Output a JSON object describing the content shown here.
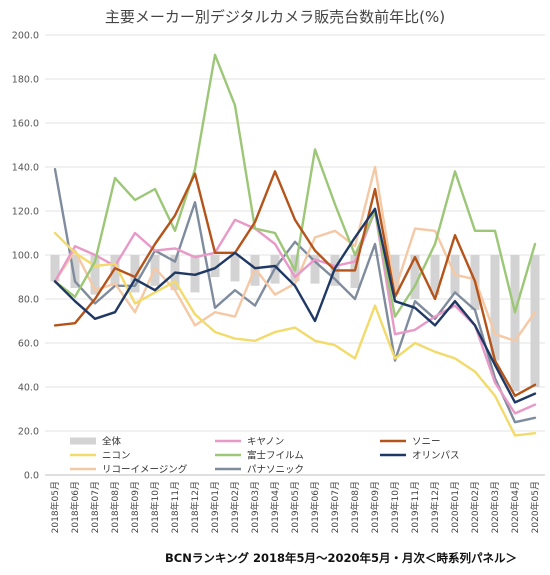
{
  "chart_data": {
    "type": "bar+line",
    "title": "主要メーカー別デジタルカメラ販売台数前年比(%)",
    "ylim": [
      0,
      200
    ],
    "yticks": [
      "0.0",
      "20.0",
      "40.0",
      "60.0",
      "80.0",
      "100.0",
      "120.0",
      "140.0",
      "160.0",
      "180.0",
      "200.0"
    ],
    "grid": true,
    "legend_position": "bottom-inside",
    "categories": [
      "2018年05月",
      "2018年06月",
      "2018年07月",
      "2018年08月",
      "2018年09月",
      "2018年10月",
      "2018年11月",
      "2018年12月",
      "2019年01月",
      "2019年02月",
      "2019年03月",
      "2019年04月",
      "2019年05月",
      "2019年06月",
      "2019年07月",
      "2019年08月",
      "2019年09月",
      "2019年10月",
      "2019年11月",
      "2019年12月",
      "2020年01月",
      "2020年02月",
      "2020年03月",
      "2020年04月",
      "2020年05月"
    ],
    "bar_series": {
      "name": "全体",
      "color": "#d3d3d3",
      "values": [
        88,
        85,
        82,
        86,
        83,
        86,
        84,
        83,
        90,
        88,
        86,
        87,
        88,
        87,
        86,
        85,
        100,
        82,
        80,
        82,
        82,
        75,
        52,
        38,
        40
      ]
    },
    "series": [
      {
        "name": "キヤノン",
        "color": "#e899c7",
        "values": [
          88,
          104,
          100,
          95,
          110,
          102,
          103,
          99,
          101,
          116,
          112,
          105,
          90,
          98,
          95,
          97,
          120,
          64,
          66,
          72,
          77,
          68,
          42,
          28,
          32
        ]
      },
      {
        "name": "ソニー",
        "color": "#b5541a",
        "values": [
          68,
          69,
          80,
          94,
          90,
          105,
          118,
          137,
          101,
          101,
          115,
          138,
          116,
          102,
          93,
          93,
          130,
          81,
          99,
          80,
          109,
          88,
          52,
          36,
          41
        ]
      },
      {
        "name": "ニコン",
        "color": "#f2db6a",
        "values": [
          110,
          101,
          95,
          96,
          78,
          83,
          88,
          73,
          65,
          62,
          61,
          65,
          67,
          61,
          59,
          53,
          77,
          53,
          60,
          56,
          53,
          47,
          36,
          18,
          19
        ]
      },
      {
        "name": "富士フイルム",
        "color": "#9cc777",
        "values": [
          88,
          81,
          97,
          135,
          125,
          130,
          111,
          139,
          191,
          168,
          112,
          110,
          93,
          148,
          123,
          100,
          120,
          72,
          86,
          105,
          138,
          111,
          111,
          74,
          105
        ]
      },
      {
        "name": "オリンパス",
        "color": "#1f3864",
        "values": [
          88,
          79,
          71,
          74,
          89,
          84,
          92,
          91,
          94,
          101,
          94,
          95,
          86,
          70,
          94,
          108,
          121,
          79,
          76,
          68,
          79,
          68,
          50,
          33,
          37
        ]
      },
      {
        "name": "リコーイメージング",
        "color": "#f5c9a5",
        "values": [
          88,
          102,
          84,
          87,
          74,
          94,
          84,
          68,
          74,
          72,
          94,
          82,
          87,
          108,
          111,
          104,
          140,
          84,
          112,
          111,
          91,
          89,
          64,
          61,
          74
        ]
      },
      {
        "name": "パナソニック",
        "color": "#7f8c9d",
        "values": [
          139,
          88,
          78,
          86,
          86,
          102,
          97,
          124,
          76,
          84,
          77,
          94,
          106,
          97,
          89,
          80,
          105,
          52,
          79,
          71,
          83,
          75,
          44,
          24,
          26
        ]
      }
    ]
  },
  "footer": {
    "source": "BCNランキング 2018年5月～2020年5月・月次＜時系列パネル＞"
  }
}
